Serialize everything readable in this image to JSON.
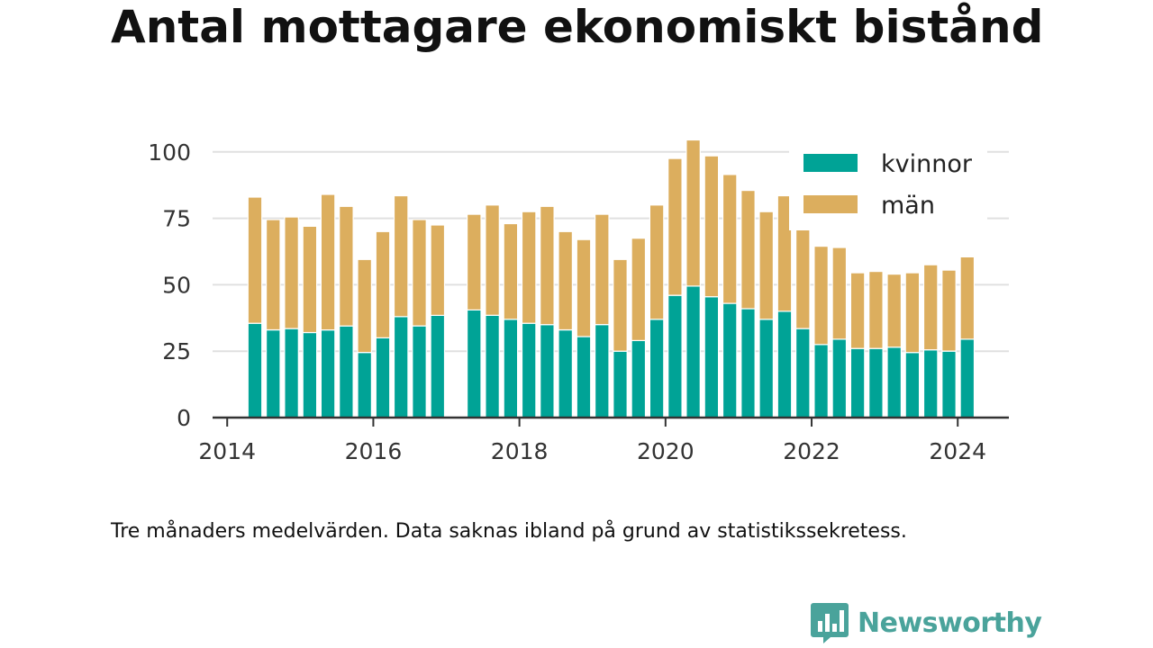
{
  "title": "Antal mottagare ekonomiskt bistånd",
  "caption": "Tre månaders medelvärden. Data saknas ibland på grund av statistikssekretess.",
  "brand": {
    "name": "Newsworthy",
    "logo_icon": "bar-chart-speech-bubble-icon"
  },
  "colors": {
    "kvinnor": "#00a396",
    "man": "#dcae5e",
    "grid": "#e0e0e0",
    "axis": "#333333",
    "brand": "#4aa39b"
  },
  "chart_data": {
    "type": "bar",
    "stacked": true,
    "title": "Antal mottagare ekonomiskt bistånd",
    "xlabel": "",
    "ylabel": "",
    "ylim": [
      0,
      105
    ],
    "xlim": [
      2013.8,
      2024.7
    ],
    "yticks": [
      0,
      25,
      50,
      75,
      100
    ],
    "xticks": [
      2014,
      2016,
      2018,
      2020,
      2022,
      2024
    ],
    "ytick_labels": [
      "0",
      "25",
      "50",
      "75",
      "100"
    ],
    "xtick_labels": [
      "2014",
      "2016",
      "2018",
      "2020",
      "2022",
      "2024"
    ],
    "bar_width_years": 0.19,
    "grid": true,
    "legend_position": "top-right",
    "x": [
      2014.38,
      2014.63,
      2014.88,
      2015.13,
      2015.38,
      2015.63,
      2015.88,
      2016.13,
      2016.38,
      2016.63,
      2016.88,
      2017.38,
      2017.63,
      2017.88,
      2018.13,
      2018.38,
      2018.63,
      2018.88,
      2019.13,
      2019.38,
      2019.63,
      2019.88,
      2020.13,
      2020.38,
      2020.63,
      2020.88,
      2021.13,
      2021.38,
      2021.63,
      2021.88,
      2022.13,
      2022.38,
      2022.63,
      2022.88,
      2023.13,
      2023.38,
      2023.63,
      2023.88,
      2024.13
    ],
    "series": [
      {
        "name": "kvinnor",
        "values": [
          35.5,
          33,
          33.5,
          32,
          33,
          34.5,
          24.5,
          30,
          38,
          34.5,
          38.5,
          40.5,
          38.5,
          37,
          35.5,
          35,
          33,
          30.5,
          35,
          25,
          29,
          37,
          46,
          49.5,
          45.5,
          43,
          41,
          37,
          40,
          33.5,
          27.5,
          29.5,
          26,
          26,
          26.5,
          24.5,
          25.5,
          25,
          29.5
        ]
      },
      {
        "name": "män",
        "values": [
          47.5,
          41.5,
          42,
          40,
          51,
          45,
          35,
          40,
          45.5,
          40,
          34,
          36,
          41.5,
          36,
          42,
          44.5,
          37,
          36.5,
          41.5,
          34.5,
          38.5,
          43,
          51.5,
          55,
          53,
          48.5,
          44.5,
          40.5,
          43.5,
          40,
          37,
          34.5,
          28.5,
          29,
          27.5,
          30,
          32,
          30.5,
          31
        ]
      }
    ]
  }
}
